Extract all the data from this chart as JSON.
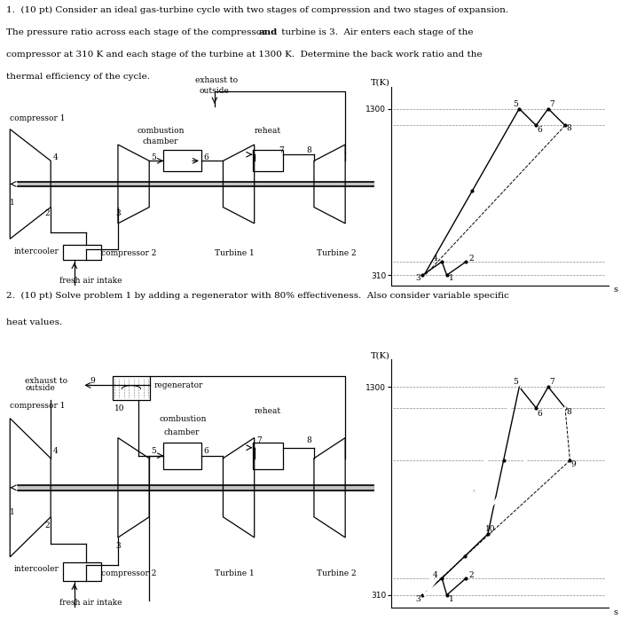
{
  "bg_color": "#ffffff",
  "fig_width": 7.0,
  "fig_height": 6.99,
  "p1_text_line1": "1.  (10 pt) Consider an ideal gas-turbine cycle with two stages of compression and two stages of expansion.",
  "p1_text_line2": "The pressure ratio across each stage of the compressor ",
  "p1_text_line2b": "and",
  "p1_text_line2c": " turbine is 3.  Air enters each stage of the",
  "p1_text_line3": "compressor at 310 K and each stage of the turbine at 1300 K.  Determine the back work ratio and the",
  "p1_text_line4": "thermal efficiency of the cycle.",
  "p2_text_line1": "2.  (10 pt) Solve problem 1 by adding a regenerator with 80% effectiveness.  Also consider variable specific",
  "p2_text_line2": "heat values.",
  "font_size": 7.5,
  "ts1": {
    "s1": 0.38,
    "T1": 310,
    "s2": 0.46,
    "T2": 390,
    "s3": 0.28,
    "T3": 310,
    "s4": 0.36,
    "T4": 390,
    "s5": 0.68,
    "T5": 1300,
    "s6": 0.75,
    "T6": 1200,
    "s7": 0.8,
    "T7": 1300,
    "s8": 0.87,
    "T8": 1200,
    "T_low": 310,
    "T_mid": 390,
    "T_umid": 1200,
    "T_high": 1300
  },
  "ts2": {
    "s9": 0.89,
    "T9": 950,
    "s10": 0.55,
    "T10": 600
  }
}
